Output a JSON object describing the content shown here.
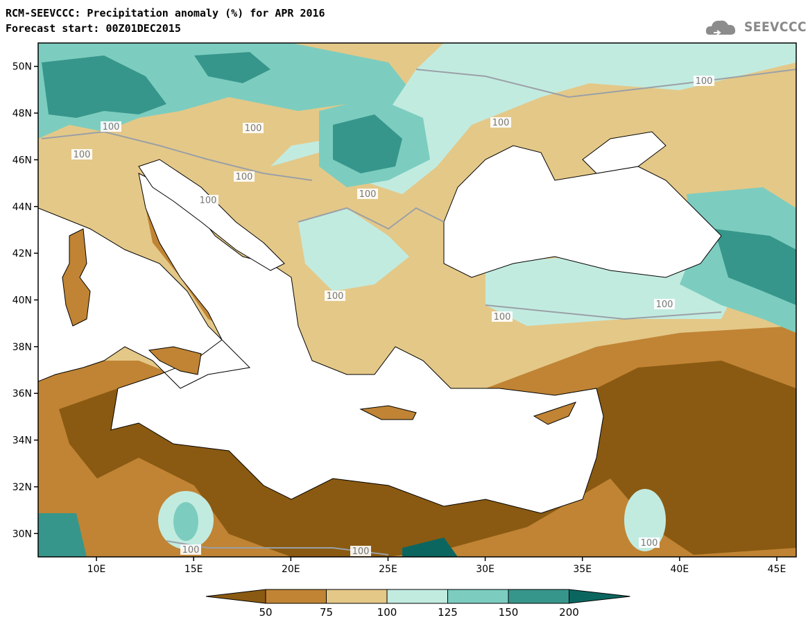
{
  "title_line1": "RCM-SEEVCCC: Precipitation anomaly (%) for APR 2016",
  "title_line2": "Forecast start: 00Z01DEC2015",
  "logo_text": "SEEVCCC",
  "map": {
    "lon_range": [
      7,
      46
    ],
    "lat_range": [
      29,
      51
    ],
    "lat_labels": [
      "50N",
      "48N",
      "46N",
      "44N",
      "42N",
      "40N",
      "38N",
      "36N",
      "34N",
      "32N",
      "30N"
    ],
    "lon_labels": [
      "10E",
      "15E",
      "20E",
      "25E",
      "30E",
      "35E",
      "40E",
      "45E"
    ],
    "contour_label": "100"
  },
  "colorbar": {
    "levels": [
      "50",
      "75",
      "100",
      "125",
      "150",
      "200"
    ],
    "colors": [
      "#8a5a12",
      "#c08434",
      "#e4c888",
      "#c2ebe0",
      "#7ccdbf",
      "#37968b",
      "#0c6660"
    ]
  },
  "palette": {
    "dark_brown": "#8a5a12",
    "mid_brown": "#c08434",
    "light_tan": "#e4c888",
    "pale_teal": "#c2ebe0",
    "mid_teal": "#7ccdbf",
    "teal": "#37968b",
    "dark_teal": "#0c6660",
    "water": "#ffffff"
  }
}
